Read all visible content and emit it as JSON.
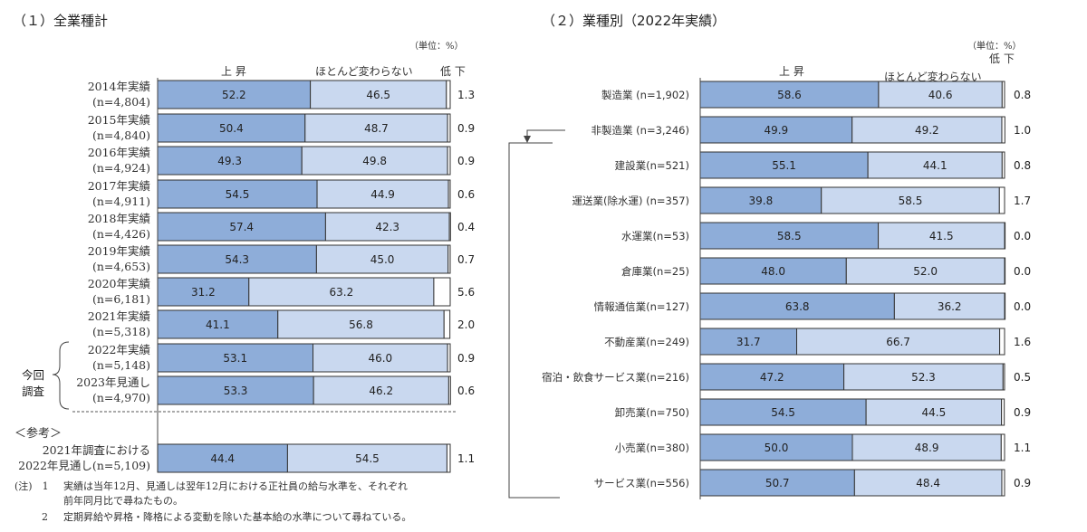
{
  "panel1": {
    "title": "（１）全業種計",
    "unit": "（単位：%）",
    "legend": {
      "up": "上 昇",
      "same": "ほとんど変わらない",
      "down": "低 下"
    },
    "bracket_label": [
      "今回",
      "調査"
    ],
    "ref_label": "＜参考＞"
  },
  "panel2": {
    "title": "（２）業種別（2022年実績）",
    "unit": "（単位：%）",
    "legend": {
      "up": "上 昇",
      "same": "ほとんど変わらない",
      "down": "低 下"
    }
  },
  "notes": [
    {
      "mark": "(注)　1",
      "text": "実績は当年12月、見通しは翌年12月における正社員の給与水準を、それぞれ"
    },
    {
      "mark": "",
      "text": "前年同月比で尋ねたもの。"
    },
    {
      "mark": "2",
      "text": "定期昇給や昇格・降格による変動を除いた基本給の水準について尋ねている。"
    }
  ],
  "colors": {
    "up": "#8eadd9",
    "same": "#c9d8ef",
    "down": "#ffffff",
    "edge": "#333333"
  },
  "chart_data": [
    {
      "type": "bar",
      "stacked": true,
      "orientation": "horizontal",
      "title": "（１）全業種計",
      "series_names": [
        "上 昇",
        "ほとんど変わらない",
        "低 下"
      ],
      "rows": [
        {
          "label": [
            "2014年実績",
            "(n=4,804)"
          ],
          "values": [
            52.2,
            46.5,
            1.3
          ]
        },
        {
          "label": [
            "2015年実績",
            "(n=4,840)"
          ],
          "values": [
            50.4,
            48.7,
            0.9
          ]
        },
        {
          "label": [
            "2016年実績",
            "(n=4,924)"
          ],
          "values": [
            49.3,
            49.8,
            0.9
          ]
        },
        {
          "label": [
            "2017年実績",
            "(n=4,911)"
          ],
          "values": [
            54.5,
            44.9,
            0.6
          ]
        },
        {
          "label": [
            "2018年実績",
            "(n=4,426)"
          ],
          "values": [
            57.4,
            42.3,
            0.4
          ]
        },
        {
          "label": [
            "2019年実績",
            "(n=4,653)"
          ],
          "values": [
            54.3,
            45.0,
            0.7
          ]
        },
        {
          "label": [
            "2020年実績",
            "(n=6,181)"
          ],
          "values": [
            31.2,
            63.2,
            5.6
          ]
        },
        {
          "label": [
            "2021年実績",
            "(n=5,318)"
          ],
          "values": [
            41.1,
            56.8,
            2.0
          ]
        },
        {
          "label": [
            "2022年実績",
            "(n=5,148)"
          ],
          "values": [
            53.1,
            46.0,
            0.9
          ]
        },
        {
          "label": [
            "2023年見通し",
            "(n=4,970)"
          ],
          "values": [
            53.3,
            46.2,
            0.6
          ]
        }
      ],
      "reference_row": {
        "label": [
          "2021年調査における",
          "2022年見通し(n=5,109)"
        ],
        "values": [
          44.4,
          54.5,
          1.1
        ]
      }
    },
    {
      "type": "bar",
      "stacked": true,
      "orientation": "horizontal",
      "title": "（２）業種別（2022年実績）",
      "series_names": [
        "上 昇",
        "ほとんど変わらない",
        "低 下"
      ],
      "rows": [
        {
          "label": "製造業 (n=1,902)",
          "values": [
            58.6,
            40.6,
            0.8
          ]
        },
        {
          "label": "非製造業 (n=3,246)",
          "values": [
            49.9,
            49.2,
            1.0
          ]
        },
        {
          "label": "建設業(n=521)",
          "values": [
            55.1,
            44.1,
            0.8
          ]
        },
        {
          "label": "運送業(除水運) (n=357)",
          "values": [
            39.8,
            58.5,
            1.7
          ]
        },
        {
          "label": "水運業(n=53)",
          "values": [
            58.5,
            41.5,
            0.0
          ]
        },
        {
          "label": "倉庫業(n=25)",
          "values": [
            48.0,
            52.0,
            0.0
          ]
        },
        {
          "label": "情報通信業(n=127)",
          "values": [
            63.8,
            36.2,
            0.0
          ]
        },
        {
          "label": "不動産業(n=249)",
          "values": [
            31.7,
            66.7,
            1.6
          ]
        },
        {
          "label": "宿泊・飲食サービス業(n=216)",
          "values": [
            47.2,
            52.3,
            0.5
          ]
        },
        {
          "label": "卸売業(n=750)",
          "values": [
            54.5,
            44.5,
            0.9
          ]
        },
        {
          "label": "小売業(n=380)",
          "values": [
            50.0,
            48.9,
            1.1
          ]
        },
        {
          "label": "サービス業(n=556)",
          "values": [
            50.7,
            48.4,
            0.9
          ]
        }
      ]
    }
  ]
}
